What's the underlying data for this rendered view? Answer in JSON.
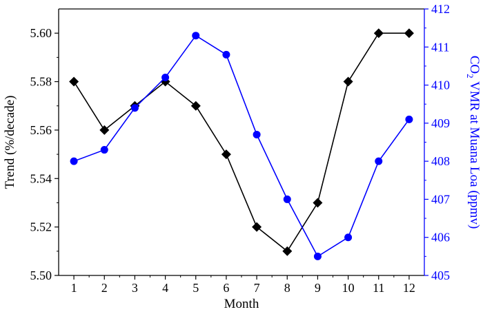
{
  "chart_data": {
    "type": "line",
    "xlabel": "Month",
    "ylabel_left": "Trend (%/decade)",
    "ylabel_right": {
      "prefix": "CO",
      "sub": "2",
      "suffix": " VMR at Muana Loa (ppmv)"
    },
    "x": [
      1,
      2,
      3,
      4,
      5,
      6,
      7,
      8,
      9,
      10,
      11,
      12
    ],
    "x_ticks": [
      "1",
      "2",
      "3",
      "4",
      "5",
      "6",
      "7",
      "8",
      "9",
      "10",
      "11",
      "12"
    ],
    "xlim": [
      0.5,
      12.5
    ],
    "ylim_left": [
      5.5,
      5.61
    ],
    "ylim_right": [
      405,
      412
    ],
    "y_ticks_left": [
      "5.50",
      "5.52",
      "5.54",
      "5.56",
      "5.58",
      "5.60"
    ],
    "y_ticks_right": [
      "405",
      "406",
      "407",
      "408",
      "409",
      "410",
      "411",
      "412"
    ],
    "grid": false,
    "series": [
      {
        "axis": "left",
        "marker": "diamond",
        "color": "#000000",
        "values": [
          5.58,
          5.56,
          5.57,
          5.58,
          5.57,
          5.55,
          5.52,
          5.51,
          5.53,
          5.58,
          5.6,
          5.6
        ]
      },
      {
        "axis": "right",
        "marker": "circle",
        "color": "#0000ff",
        "values": [
          408.0,
          408.3,
          409.4,
          410.2,
          411.3,
          410.8,
          408.7,
          407.0,
          405.5,
          406.0,
          408.0,
          409.1
        ]
      }
    ]
  }
}
